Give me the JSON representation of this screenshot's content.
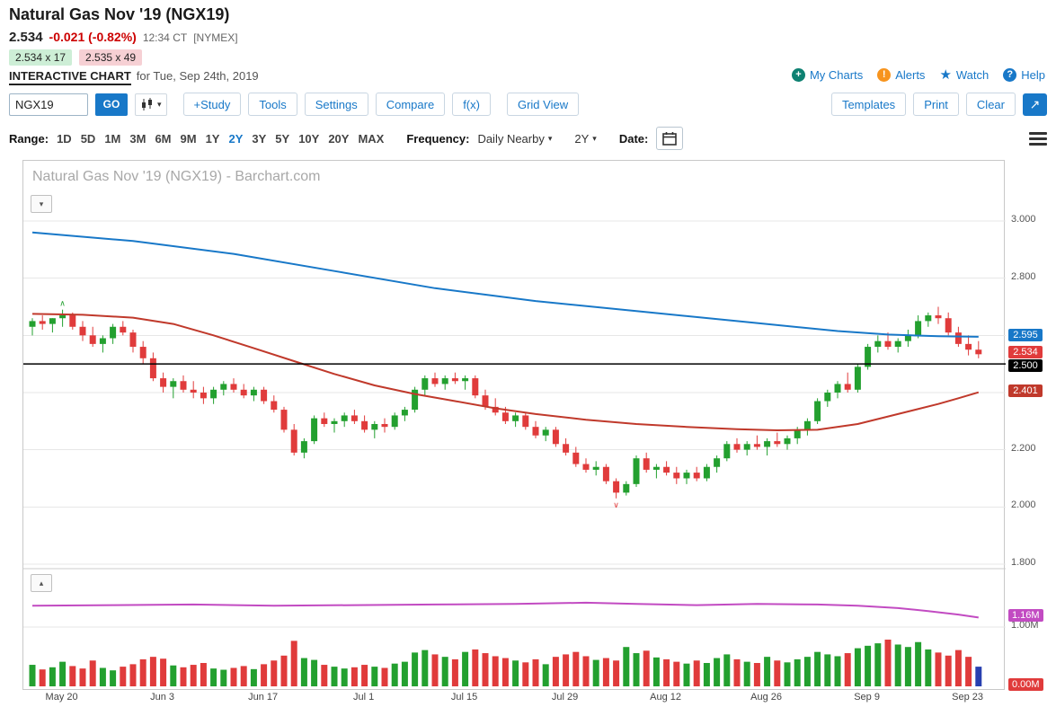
{
  "header": {
    "title": "Natural Gas Nov '19 (NGX19)",
    "last_price": "2.534",
    "change": "-0.021 (-0.82%)",
    "timestamp": "12:34 CT",
    "exchange": "[NYMEX]",
    "bid": "2.534 x 17",
    "ask": "2.535 x 49",
    "page_label": "INTERACTIVE CHART",
    "page_date": "for Tue, Sep 24th, 2019",
    "links": {
      "my_charts": "My Charts",
      "alerts": "Alerts",
      "watch": "Watch",
      "help": "Help"
    }
  },
  "icons": {
    "plus": "+",
    "exclaim": "!",
    "star": "★",
    "question": "?",
    "caret_down": "▾",
    "collapse_up": "▴",
    "expand_arrow": "↗"
  },
  "toolbar": {
    "symbol_input": "NGX19",
    "go_button": "GO",
    "study_button": "+Study",
    "tools_button": "Tools",
    "settings_button": "Settings",
    "compare_button": "Compare",
    "fx_button": "f(x)",
    "grid_view_button": "Grid View",
    "templates_button": "Templates",
    "print_button": "Print",
    "clear_button": "Clear"
  },
  "range_bar": {
    "range_label": "Range:",
    "ranges": [
      "1D",
      "5D",
      "1M",
      "3M",
      "6M",
      "9M",
      "1Y",
      "2Y",
      "3Y",
      "5Y",
      "10Y",
      "20Y",
      "MAX"
    ],
    "active_range": "2Y",
    "frequency_label": "Frequency:",
    "frequency_value": "Daily Nearby",
    "period_value": "2Y",
    "date_label": "Date:"
  },
  "chart_data": {
    "type": "candlestick",
    "watermark_title": "Natural Gas Nov '19 (NGX19) - Barchart.com",
    "colors": {
      "up": "#23a02f",
      "down": "#e03b3b",
      "ma_long": "#1878c8",
      "ma_short": "#c0392b",
      "open_interest": "#c24bc2",
      "last_volume": "#2840b0",
      "grid": "#e7e7e7",
      "hline": "#000000"
    },
    "y_gridlines": [
      3.0,
      2.8,
      2.6,
      2.4,
      2.2,
      2.0,
      1.8
    ],
    "y_labels": [
      {
        "value": 3.0,
        "text": "3.000"
      },
      {
        "value": 2.8,
        "text": "2.800"
      },
      {
        "value": 2.2,
        "text": "2.200"
      },
      {
        "value": 2.0,
        "text": "2.000"
      },
      {
        "value": 1.8,
        "text": "1.800"
      }
    ],
    "price_badges": [
      {
        "text": "2.595",
        "value": 2.595,
        "bg": "#1878c8",
        "series": "long-moving-average"
      },
      {
        "text": "2.534",
        "value": 2.534,
        "bg": "#e03b3b",
        "series": "last-price"
      },
      {
        "text": "2.500",
        "value": 2.5,
        "bg": "#000000",
        "series": "horizontal-line"
      },
      {
        "text": "2.401",
        "value": 2.401,
        "bg": "#c0392b",
        "series": "short-moving-average"
      }
    ],
    "horizontal_line": 2.5,
    "lower_labels": [
      {
        "text": "1.00M",
        "y_value": 1.0
      }
    ],
    "lower_badges": [
      {
        "text": "1.16M",
        "y_value": 1.16,
        "bg": "#c24bc2",
        "series": "open-interest"
      },
      {
        "text": "0.00M",
        "y_value": 0.0,
        "bg": "#e03b3b",
        "series": "volume"
      }
    ],
    "x_ticks": [
      {
        "i": 3,
        "label": "May 20"
      },
      {
        "i": 13,
        "label": "Jun 3"
      },
      {
        "i": 23,
        "label": "Jun 17"
      },
      {
        "i": 33,
        "label": "Jul 1"
      },
      {
        "i": 43,
        "label": "Jul 15"
      },
      {
        "i": 53,
        "label": "Jul 29"
      },
      {
        "i": 63,
        "label": "Aug 12"
      },
      {
        "i": 73,
        "label": "Aug 26"
      },
      {
        "i": 83,
        "label": "Sep 9"
      },
      {
        "i": 93,
        "label": "Sep 23"
      }
    ],
    "candles": [
      [
        2.63,
        2.66,
        2.6,
        2.65
      ],
      [
        2.65,
        2.67,
        2.62,
        2.64
      ],
      [
        2.64,
        2.66,
        2.61,
        2.66
      ],
      [
        2.66,
        2.69,
        2.63,
        2.67
      ],
      [
        2.67,
        2.68,
        2.62,
        2.63
      ],
      [
        2.63,
        2.65,
        2.58,
        2.6
      ],
      [
        2.6,
        2.63,
        2.56,
        2.57
      ],
      [
        2.57,
        2.6,
        2.54,
        2.59
      ],
      [
        2.59,
        2.64,
        2.57,
        2.63
      ],
      [
        2.63,
        2.65,
        2.6,
        2.61
      ],
      [
        2.61,
        2.62,
        2.54,
        2.56
      ],
      [
        2.56,
        2.58,
        2.5,
        2.52
      ],
      [
        2.52,
        2.54,
        2.44,
        2.45
      ],
      [
        2.45,
        2.47,
        2.4,
        2.42
      ],
      [
        2.42,
        2.45,
        2.38,
        2.44
      ],
      [
        2.44,
        2.46,
        2.4,
        2.41
      ],
      [
        2.41,
        2.44,
        2.38,
        2.4
      ],
      [
        2.4,
        2.42,
        2.36,
        2.38
      ],
      [
        2.38,
        2.42,
        2.36,
        2.41
      ],
      [
        2.41,
        2.44,
        2.39,
        2.43
      ],
      [
        2.43,
        2.45,
        2.4,
        2.41
      ],
      [
        2.41,
        2.43,
        2.38,
        2.39
      ],
      [
        2.39,
        2.42,
        2.37,
        2.41
      ],
      [
        2.41,
        2.42,
        2.36,
        2.37
      ],
      [
        2.37,
        2.39,
        2.33,
        2.34
      ],
      [
        2.34,
        2.35,
        2.26,
        2.27
      ],
      [
        2.27,
        2.29,
        2.18,
        2.19
      ],
      [
        2.19,
        2.24,
        2.17,
        2.23
      ],
      [
        2.23,
        2.32,
        2.22,
        2.31
      ],
      [
        2.31,
        2.33,
        2.28,
        2.29
      ],
      [
        2.29,
        2.31,
        2.26,
        2.3
      ],
      [
        2.3,
        2.33,
        2.28,
        2.32
      ],
      [
        2.32,
        2.34,
        2.29,
        2.3
      ],
      [
        2.3,
        2.32,
        2.26,
        2.27
      ],
      [
        2.27,
        2.3,
        2.24,
        2.29
      ],
      [
        2.29,
        2.31,
        2.26,
        2.28
      ],
      [
        2.28,
        2.33,
        2.27,
        2.32
      ],
      [
        2.32,
        2.35,
        2.3,
        2.34
      ],
      [
        2.34,
        2.42,
        2.33,
        2.41
      ],
      [
        2.41,
        2.46,
        2.39,
        2.45
      ],
      [
        2.45,
        2.47,
        2.42,
        2.43
      ],
      [
        2.43,
        2.46,
        2.41,
        2.45
      ],
      [
        2.45,
        2.47,
        2.43,
        2.44
      ],
      [
        2.44,
        2.46,
        2.41,
        2.45
      ],
      [
        2.45,
        2.46,
        2.38,
        2.39
      ],
      [
        2.39,
        2.41,
        2.34,
        2.35
      ],
      [
        2.35,
        2.38,
        2.32,
        2.33
      ],
      [
        2.33,
        2.35,
        2.29,
        2.3
      ],
      [
        2.3,
        2.33,
        2.28,
        2.32
      ],
      [
        2.32,
        2.33,
        2.27,
        2.28
      ],
      [
        2.28,
        2.3,
        2.24,
        2.25
      ],
      [
        2.25,
        2.28,
        2.23,
        2.27
      ],
      [
        2.27,
        2.28,
        2.21,
        2.22
      ],
      [
        2.22,
        2.24,
        2.18,
        2.19
      ],
      [
        2.19,
        2.21,
        2.14,
        2.15
      ],
      [
        2.15,
        2.17,
        2.12,
        2.13
      ],
      [
        2.13,
        2.16,
        2.11,
        2.14
      ],
      [
        2.14,
        2.15,
        2.08,
        2.09
      ],
      [
        2.09,
        2.1,
        2.03,
        2.05
      ],
      [
        2.05,
        2.09,
        2.04,
        2.08
      ],
      [
        2.08,
        2.18,
        2.07,
        2.17
      ],
      [
        2.17,
        2.19,
        2.12,
        2.13
      ],
      [
        2.13,
        2.15,
        2.1,
        2.14
      ],
      [
        2.14,
        2.16,
        2.11,
        2.12
      ],
      [
        2.12,
        2.14,
        2.08,
        2.1
      ],
      [
        2.1,
        2.13,
        2.08,
        2.12
      ],
      [
        2.12,
        2.14,
        2.09,
        2.1
      ],
      [
        2.1,
        2.15,
        2.09,
        2.14
      ],
      [
        2.14,
        2.18,
        2.12,
        2.17
      ],
      [
        2.17,
        2.23,
        2.16,
        2.22
      ],
      [
        2.22,
        2.24,
        2.19,
        2.2
      ],
      [
        2.2,
        2.23,
        2.18,
        2.22
      ],
      [
        2.22,
        2.25,
        2.2,
        2.21
      ],
      [
        2.21,
        2.24,
        2.18,
        2.23
      ],
      [
        2.23,
        2.26,
        2.21,
        2.22
      ],
      [
        2.22,
        2.25,
        2.2,
        2.24
      ],
      [
        2.24,
        2.28,
        2.22,
        2.27
      ],
      [
        2.27,
        2.31,
        2.25,
        2.3
      ],
      [
        2.3,
        2.38,
        2.29,
        2.37
      ],
      [
        2.37,
        2.41,
        2.35,
        2.4
      ],
      [
        2.4,
        2.44,
        2.38,
        2.43
      ],
      [
        2.43,
        2.47,
        2.4,
        2.41
      ],
      [
        2.41,
        2.5,
        2.4,
        2.49
      ],
      [
        2.49,
        2.57,
        2.48,
        2.56
      ],
      [
        2.56,
        2.6,
        2.54,
        2.58
      ],
      [
        2.58,
        2.61,
        2.55,
        2.56
      ],
      [
        2.56,
        2.59,
        2.54,
        2.58
      ],
      [
        2.58,
        2.62,
        2.56,
        2.6
      ],
      [
        2.6,
        2.67,
        2.59,
        2.65
      ],
      [
        2.65,
        2.68,
        2.63,
        2.67
      ],
      [
        2.67,
        2.7,
        2.64,
        2.66
      ],
      [
        2.66,
        2.68,
        2.6,
        2.61
      ],
      [
        2.61,
        2.63,
        2.56,
        2.57
      ],
      [
        2.57,
        2.6,
        2.53,
        2.55
      ],
      [
        2.55,
        2.58,
        2.52,
        2.534
      ]
    ],
    "volume": [
      70,
      55,
      62,
      80,
      66,
      58,
      84,
      60,
      52,
      64,
      72,
      88,
      96,
      90,
      68,
      62,
      70,
      76,
      58,
      54,
      60,
      66,
      56,
      72,
      84,
      100,
      148,
      92,
      86,
      70,
      64,
      58,
      62,
      70,
      64,
      60,
      74,
      80,
      110,
      118,
      104,
      96,
      88,
      112,
      120,
      108,
      98,
      92,
      84,
      78,
      88,
      72,
      96,
      104,
      112,
      98,
      86,
      92,
      84,
      128,
      108,
      116,
      94,
      88,
      80,
      74,
      84,
      76,
      92,
      104,
      88,
      80,
      76,
      96,
      84,
      78,
      88,
      96,
      112,
      104,
      98,
      108,
      124,
      132,
      140,
      152,
      136,
      128,
      144,
      120,
      110,
      100,
      118,
      96,
      64
    ],
    "ma_long": [
      [
        0,
        2.96
      ],
      [
        10,
        2.93
      ],
      [
        20,
        2.885
      ],
      [
        30,
        2.825
      ],
      [
        40,
        2.765
      ],
      [
        50,
        2.72
      ],
      [
        60,
        2.685
      ],
      [
        70,
        2.65
      ],
      [
        80,
        2.615
      ],
      [
        85,
        2.603
      ],
      [
        90,
        2.597
      ],
      [
        94,
        2.595
      ]
    ],
    "ma_short": [
      [
        0,
        2.675
      ],
      [
        5,
        2.672
      ],
      [
        10,
        2.662
      ],
      [
        14,
        2.64
      ],
      [
        18,
        2.6
      ],
      [
        22,
        2.555
      ],
      [
        26,
        2.51
      ],
      [
        30,
        2.465
      ],
      [
        34,
        2.425
      ],
      [
        38,
        2.395
      ],
      [
        42,
        2.37
      ],
      [
        46,
        2.345
      ],
      [
        50,
        2.325
      ],
      [
        55,
        2.305
      ],
      [
        60,
        2.29
      ],
      [
        65,
        2.28
      ],
      [
        70,
        2.272
      ],
      [
        74,
        2.268
      ],
      [
        78,
        2.27
      ],
      [
        82,
        2.29
      ],
      [
        86,
        2.325
      ],
      [
        90,
        2.36
      ],
      [
        92,
        2.38
      ],
      [
        94,
        2.401
      ]
    ],
    "open_interest": [
      [
        0,
        1.36
      ],
      [
        8,
        1.37
      ],
      [
        16,
        1.38
      ],
      [
        24,
        1.36
      ],
      [
        32,
        1.37
      ],
      [
        40,
        1.38
      ],
      [
        48,
        1.39
      ],
      [
        55,
        1.41
      ],
      [
        60,
        1.39
      ],
      [
        66,
        1.37
      ],
      [
        72,
        1.39
      ],
      [
        78,
        1.38
      ],
      [
        82,
        1.36
      ],
      [
        86,
        1.32
      ],
      [
        89,
        1.27
      ],
      [
        92,
        1.21
      ],
      [
        94,
        1.16
      ]
    ],
    "markers": [
      {
        "i": 3,
        "pos": "above",
        "glyph": "∧",
        "color": "#23a02f"
      },
      {
        "i": 58,
        "pos": "below",
        "glyph": "∨",
        "color": "#e03b3b"
      }
    ]
  }
}
